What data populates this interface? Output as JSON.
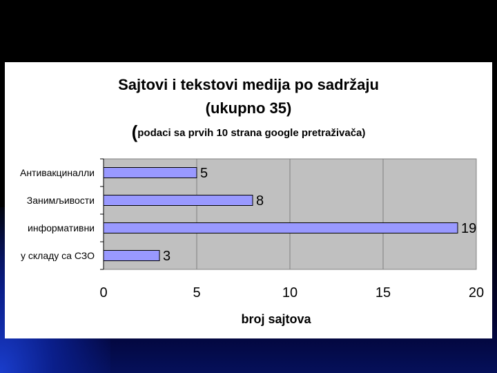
{
  "chart_data": {
    "type": "bar",
    "orientation": "horizontal",
    "title_line1": "Sajtovi i tekstovi medija po sadržaju",
    "title_line2": "(ukupno 35)",
    "title_line3_paren": "(",
    "title_line3_text": "podaci sa prvih 10 strana google pretraživača)",
    "categories": [
      "Антивакциналли",
      "Занимљивости",
      "информативни",
      "у складу са СЗО"
    ],
    "values": [
      5,
      8,
      19,
      3
    ],
    "value_labels": [
      "5",
      "8",
      "19",
      "3"
    ],
    "xlabel": "broj sajtova",
    "ylabel": "",
    "xlim": [
      0,
      20
    ],
    "xticks": [
      0,
      5,
      10,
      15,
      20
    ],
    "xtick_labels": [
      "0",
      "5",
      "10",
      "15",
      "20"
    ],
    "grid": "vertical",
    "legend": "none",
    "colors": {
      "bar_fill": "#9999ff",
      "bar_stroke": "#000000",
      "plot_background": "#c0c0c0",
      "grid": "#808080"
    }
  }
}
